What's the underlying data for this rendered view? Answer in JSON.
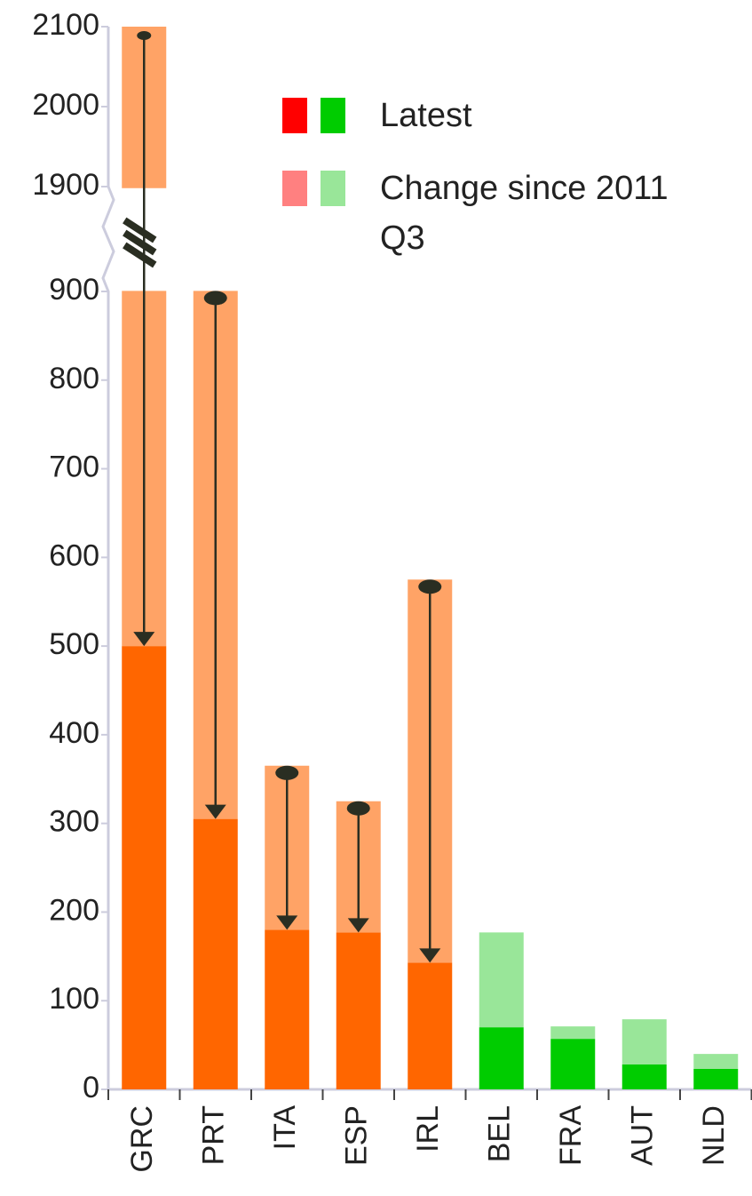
{
  "chart_data": {
    "type": "bar",
    "stacked": true,
    "categories": [
      "GRC",
      "PRT",
      "ITA",
      "ESP",
      "IRL",
      "BEL",
      "FRA",
      "AUT",
      "NLD"
    ],
    "series": [
      {
        "name": "Latest",
        "legend_colors": [
          "#ff0000",
          "#00cc00"
        ],
        "colors": [
          "#ff6600",
          "#ff6600",
          "#ff6600",
          "#ff6600",
          "#ff6600",
          "#00cc00",
          "#00cc00",
          "#00cc00",
          "#00cc00"
        ],
        "values": [
          500,
          305,
          180,
          177,
          143,
          70,
          57,
          28,
          23
        ]
      },
      {
        "name": "Change since 2011 Q3",
        "legend_colors": [
          "#ff8080",
          "#99e699"
        ],
        "colors": [
          "#ffa366",
          "#ffa366",
          "#ffa366",
          "#ffa366",
          "#ffa366",
          "#99e699",
          "#99e699",
          "#99e699",
          "#99e699"
        ],
        "values": [
          1600,
          600,
          185,
          148,
          432,
          107,
          14,
          51,
          17
        ]
      }
    ],
    "arrows": [
      true,
      true,
      true,
      true,
      true,
      false,
      false,
      false,
      false
    ],
    "ylim": [
      0,
      2100
    ],
    "axis_break": [
      900,
      1900
    ],
    "yticks": [
      0,
      100,
      200,
      300,
      400,
      500,
      600,
      700,
      800,
      900,
      1900,
      2000,
      2100
    ]
  }
}
